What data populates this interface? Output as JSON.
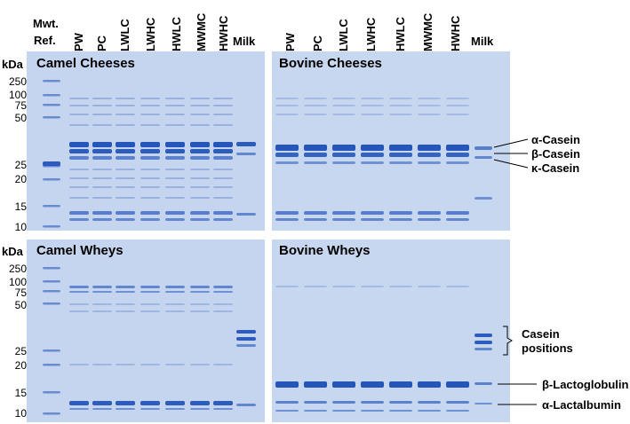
{
  "header": {
    "mwt_line1": "Mwt.",
    "mwt_line2": "Ref.",
    "camel_lanes": [
      "PW",
      "PC",
      "LWLC",
      "LWHC",
      "HWLC",
      "MWMC",
      "HWHC"
    ],
    "camel_milk": "Milk",
    "bovine_lanes": [
      "PW",
      "PC",
      "LWLC",
      "LWHC",
      "HWLC",
      "MWMC",
      "HWHC"
    ],
    "bovine_milk": "Milk"
  },
  "axis": {
    "unit": "kDa",
    "top_ticks": [
      "250",
      "100",
      "75",
      "50",
      "25",
      "20",
      "15",
      "10"
    ],
    "bottom_ticks": [
      "250",
      "100",
      "75",
      "50",
      "25",
      "20",
      "15",
      "10"
    ]
  },
  "panels": {
    "camel_cheeses": "Camel Cheeses",
    "bovine_cheeses": "Bovine Cheeses",
    "camel_wheys": "Camel Wheys",
    "bovine_wheys": "Bovine Wheys"
  },
  "annotations": {
    "alpha_casein": "α-Casein",
    "beta_casein": "β-Casein",
    "kappa_casein": "κ-Casein",
    "casein_positions_1": "Casein",
    "casein_positions_2": "positions",
    "beta_lactoglobulin": "β-Lactoglobulin",
    "alpha_lactalbumin": "α-Lactalbumin"
  },
  "colors": {
    "gel_background": "#c7d6ef",
    "band_dark": "#1c4fb5",
    "band_mid": "#4a73c6",
    "band_faint": "#8fa8dc"
  }
}
